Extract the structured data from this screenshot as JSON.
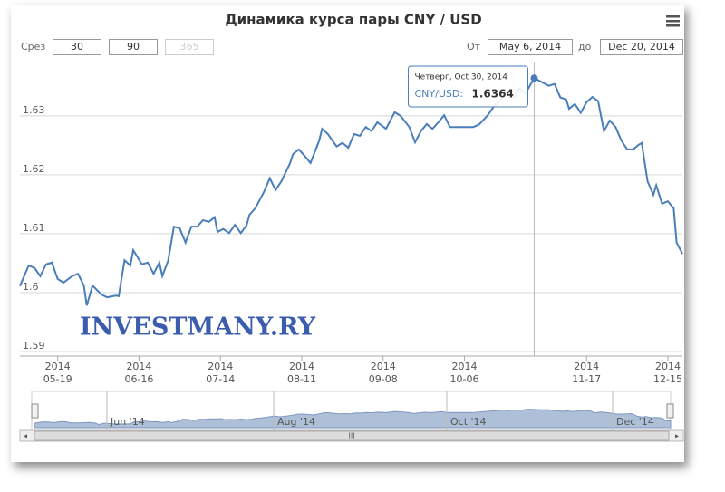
{
  "chart_data": {
    "type": "line",
    "title": "Динамика курса пары CNY / USD",
    "range_selector": {
      "label": "Срез",
      "buttons": [
        "30",
        "90",
        "365"
      ],
      "from_label": "От",
      "from": "May 6, 2014",
      "to_label": "до",
      "to": "Dec 20, 2014"
    },
    "watermark": "INVESTMANY.RY",
    "x": [
      "2014-05-06",
      "2014-05-09",
      "2014-05-11",
      "2014-05-13",
      "2014-05-15",
      "2014-05-17",
      "2014-05-19",
      "2014-05-21",
      "2014-05-24",
      "2014-05-26",
      "2014-05-28",
      "2014-05-29",
      "2014-05-31",
      "2014-06-03",
      "2014-06-05",
      "2014-06-08",
      "2014-06-09",
      "2014-06-11",
      "2014-06-13",
      "2014-06-14",
      "2014-06-17",
      "2014-06-19",
      "2014-06-21",
      "2014-06-23",
      "2014-06-24",
      "2014-06-26",
      "2014-06-28",
      "2014-06-30",
      "2014-07-02",
      "2014-07-04",
      "2014-07-06",
      "2014-07-08",
      "2014-07-10",
      "2014-07-12",
      "2014-07-13",
      "2014-07-15",
      "2014-07-17",
      "2014-07-19",
      "2014-07-21",
      "2014-07-23",
      "2014-07-24",
      "2014-07-26",
      "2014-07-29",
      "2014-07-31",
      "2014-08-02",
      "2014-08-04",
      "2014-08-07",
      "2014-08-08",
      "2014-08-10",
      "2014-08-12",
      "2014-08-14",
      "2014-08-17",
      "2014-08-18",
      "2014-08-20",
      "2014-08-23",
      "2014-08-25",
      "2014-08-27",
      "2014-08-29",
      "2014-08-31",
      "2014-09-02",
      "2014-09-04",
      "2014-09-06",
      "2014-09-09",
      "2014-09-11",
      "2014-09-12",
      "2014-09-14",
      "2014-09-17",
      "2014-09-19",
      "2014-09-21",
      "2014-09-23",
      "2014-09-25",
      "2014-09-27",
      "2014-09-29",
      "2014-10-01",
      "2014-10-04",
      "2014-10-06",
      "2014-10-09",
      "2014-10-11",
      "2014-10-14",
      "2014-10-16",
      "2014-10-18",
      "2014-10-21",
      "2014-10-23",
      "2014-10-25",
      "2014-10-27",
      "2014-10-30",
      "2014-11-04",
      "2014-11-06",
      "2014-11-08",
      "2014-11-10",
      "2014-11-11",
      "2014-11-13",
      "2014-11-15",
      "2014-11-17",
      "2014-11-19",
      "2014-11-21",
      "2014-11-23",
      "2014-11-25",
      "2014-11-27",
      "2014-11-29",
      "2014-12-01",
      "2014-12-03",
      "2014-12-05",
      "2014-12-06",
      "2014-12-08",
      "2014-12-10",
      "2014-12-11",
      "2014-12-13",
      "2014-12-15",
      "2014-12-17",
      "2014-12-18",
      "2014-12-20"
    ],
    "series": [
      {
        "name": "CNY/USD",
        "color": "#4a7ebb",
        "values": [
          1.6011,
          1.6046,
          1.6042,
          1.6028,
          1.6048,
          1.6051,
          1.6023,
          1.6017,
          1.6028,
          1.6032,
          1.6012,
          1.5978,
          1.6012,
          1.5997,
          1.5992,
          1.5995,
          1.5994,
          1.6055,
          1.6046,
          1.6072,
          1.6048,
          1.6051,
          1.6032,
          1.6051,
          1.6028,
          1.6054,
          1.6112,
          1.6109,
          1.6085,
          1.6112,
          1.6112,
          1.6123,
          1.612,
          1.6128,
          1.6103,
          1.6108,
          1.6101,
          1.6115,
          1.6101,
          1.6114,
          1.6132,
          1.6143,
          1.6171,
          1.6194,
          1.6174,
          1.6189,
          1.622,
          1.6235,
          1.6243,
          1.6232,
          1.622,
          1.6258,
          1.6278,
          1.6269,
          1.6248,
          1.6254,
          1.6246,
          1.6269,
          1.6266,
          1.6281,
          1.6274,
          1.6289,
          1.6278,
          1.6297,
          1.6306,
          1.63,
          1.6281,
          1.6255,
          1.6274,
          1.6286,
          1.6278,
          1.6289,
          1.6301,
          1.6281,
          1.6281,
          1.6281,
          1.6281,
          1.6285,
          1.6301,
          1.6315,
          1.6325,
          1.6343,
          1.6331,
          1.6346,
          1.6338,
          1.6364,
          1.6351,
          1.6354,
          1.6331,
          1.6328,
          1.6312,
          1.632,
          1.6305,
          1.6323,
          1.6332,
          1.6325,
          1.6274,
          1.6292,
          1.6281,
          1.6258,
          1.6243,
          1.6243,
          1.6251,
          1.6254,
          1.6189,
          1.6166,
          1.6182,
          1.6151,
          1.6155,
          1.6143,
          1.6085,
          1.6066
        ]
      }
    ],
    "tooltip": {
      "header": "Четверг, Oct 30, 2014",
      "label": "CNY/USD:",
      "value": 1.6364
    },
    "xlim": [
      "2014-05-06",
      "2014-12-20"
    ],
    "xticks": [
      {
        "value": "2014-05-19",
        "label": "2014\n05-19"
      },
      {
        "value": "2014-06-16",
        "label": "2014\n06-16"
      },
      {
        "value": "2014-07-14",
        "label": "2014\n07-14"
      },
      {
        "value": "2014-08-11",
        "label": "2014\n08-11"
      },
      {
        "value": "2014-09-08",
        "label": "2014\n09-08"
      },
      {
        "value": "2014-10-06",
        "label": "2014\n10-06"
      },
      {
        "value": "2014-11-17",
        "label": "2014\n11-17"
      },
      {
        "value": "2014-12-15",
        "label": "2014\n12-15"
      }
    ],
    "ylim": [
      1.59,
      1.6392
    ],
    "yticks": [
      1.59,
      1.6,
      1.61,
      1.62,
      1.63
    ],
    "grid": true,
    "navigator_labels": [
      "Jun '14",
      "Aug '14",
      "Oct '14",
      "Dec '14"
    ]
  }
}
